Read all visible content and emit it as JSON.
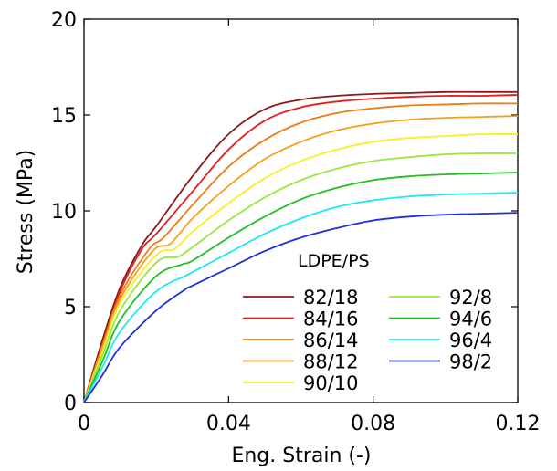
{
  "chart_data": {
    "type": "line",
    "xlabel": "Eng. Strain (-)",
    "ylabel": "Stress (MPa)",
    "xlim": [
      0,
      0.12
    ],
    "ylim": [
      0,
      20
    ],
    "xticks": [
      0,
      0.04,
      0.08,
      0.12
    ],
    "xtick_labels": [
      "0",
      "0.04",
      "0.08",
      "0.12"
    ],
    "yticks": [
      0,
      5,
      10,
      15,
      20
    ],
    "ytick_labels": [
      "0",
      "5",
      "10",
      "15",
      "20"
    ],
    "grid": false,
    "legend_title": "LDPE/PS",
    "legend_placement": "bottom-right",
    "series": [
      {
        "name": "82/18",
        "color": "#8b1a1a",
        "x": [
          0,
          0.005,
          0.01,
          0.016,
          0.02,
          0.03,
          0.04,
          0.05,
          0.06,
          0.07,
          0.08,
          0.09,
          0.1,
          0.11,
          0.12
        ],
        "y": [
          0,
          3.2,
          6.0,
          8.2,
          9.2,
          11.8,
          14.0,
          15.3,
          15.8,
          16.0,
          16.1,
          16.15,
          16.2,
          16.2,
          16.2
        ]
      },
      {
        "name": "84/16",
        "color": "#e02020",
        "x": [
          0,
          0.005,
          0.01,
          0.016,
          0.02,
          0.03,
          0.04,
          0.05,
          0.06,
          0.07,
          0.08,
          0.09,
          0.1,
          0.11,
          0.12
        ],
        "y": [
          0,
          3.0,
          5.8,
          8.0,
          8.8,
          11.0,
          13.2,
          14.7,
          15.4,
          15.7,
          15.85,
          15.95,
          16.0,
          16.0,
          16.05
        ]
      },
      {
        "name": "86/14",
        "color": "#f07a10",
        "x": [
          0,
          0.005,
          0.01,
          0.018,
          0.022,
          0.03,
          0.04,
          0.05,
          0.06,
          0.07,
          0.08,
          0.09,
          0.1,
          0.11,
          0.12
        ],
        "y": [
          0,
          2.9,
          5.6,
          8.0,
          8.6,
          10.3,
          12.3,
          13.7,
          14.6,
          15.1,
          15.35,
          15.5,
          15.55,
          15.6,
          15.6
        ]
      },
      {
        "name": "88/12",
        "color": "#f5a020",
        "x": [
          0,
          0.005,
          0.01,
          0.019,
          0.024,
          0.03,
          0.04,
          0.05,
          0.06,
          0.07,
          0.08,
          0.09,
          0.1,
          0.11,
          0.12
        ],
        "y": [
          0,
          2.8,
          5.4,
          7.9,
          8.3,
          9.6,
          11.3,
          12.7,
          13.6,
          14.2,
          14.55,
          14.75,
          14.85,
          14.9,
          14.95
        ]
      },
      {
        "name": "90/10",
        "color": "#f8f020",
        "x": [
          0,
          0.005,
          0.01,
          0.02,
          0.025,
          0.03,
          0.04,
          0.05,
          0.06,
          0.07,
          0.08,
          0.09,
          0.1,
          0.11,
          0.12
        ],
        "y": [
          0,
          2.6,
          5.2,
          7.7,
          8.0,
          8.9,
          10.4,
          11.7,
          12.6,
          13.2,
          13.6,
          13.8,
          13.9,
          14.0,
          14.0
        ]
      },
      {
        "name": "92/8",
        "color": "#98e840",
        "x": [
          0,
          0.005,
          0.01,
          0.02,
          0.026,
          0.03,
          0.04,
          0.05,
          0.06,
          0.07,
          0.08,
          0.09,
          0.1,
          0.11,
          0.12
        ],
        "y": [
          0,
          2.4,
          4.8,
          7.3,
          7.6,
          8.1,
          9.5,
          10.7,
          11.6,
          12.2,
          12.6,
          12.8,
          12.95,
          13.0,
          13.0
        ]
      },
      {
        "name": "94/6",
        "color": "#20c020",
        "x": [
          0,
          0.005,
          0.01,
          0.02,
          0.027,
          0.03,
          0.04,
          0.05,
          0.06,
          0.07,
          0.08,
          0.09,
          0.1,
          0.11,
          0.12
        ],
        "y": [
          0,
          2.1,
          4.3,
          6.6,
          7.2,
          7.4,
          8.6,
          9.7,
          10.6,
          11.2,
          11.6,
          11.8,
          11.9,
          11.95,
          12.0
        ]
      },
      {
        "name": "96/4",
        "color": "#20e8f0",
        "x": [
          0,
          0.005,
          0.01,
          0.02,
          0.028,
          0.03,
          0.04,
          0.05,
          0.06,
          0.07,
          0.08,
          0.09,
          0.1,
          0.11,
          0.12
        ],
        "y": [
          0,
          1.8,
          3.7,
          5.8,
          6.6,
          6.8,
          7.8,
          8.8,
          9.6,
          10.2,
          10.55,
          10.75,
          10.85,
          10.9,
          10.95
        ]
      },
      {
        "name": "98/2",
        "color": "#2030d8",
        "x": [
          0,
          0.005,
          0.01,
          0.02,
          0.028,
          0.03,
          0.04,
          0.05,
          0.06,
          0.07,
          0.08,
          0.09,
          0.1,
          0.11,
          0.12
        ],
        "y": [
          0,
          1.4,
          2.9,
          4.8,
          5.9,
          6.1,
          7.0,
          7.9,
          8.6,
          9.1,
          9.5,
          9.7,
          9.8,
          9.85,
          9.9
        ]
      }
    ]
  }
}
